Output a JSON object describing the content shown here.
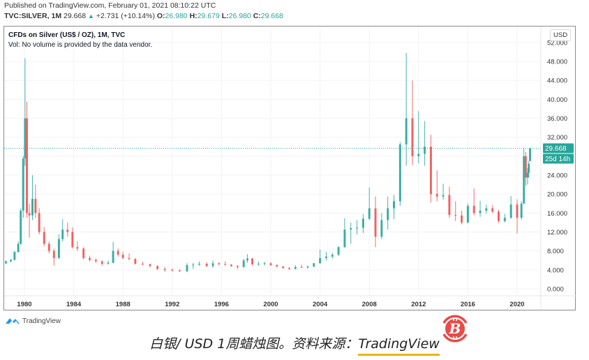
{
  "header": {
    "published": "Published on TradingView.com, February 01, 2021 08:10:22 UTC",
    "symbol": "TVC:SILVER, 1M",
    "last": "29.668",
    "change_icon": "triangle-up-icon",
    "change": "+2.731 (+10.14%)",
    "open_label": "O:",
    "open": "26.980",
    "high_label": "H:",
    "high": "29.679",
    "low_label": "L:",
    "low": "26.980",
    "close_label": "C:",
    "close": "29.668"
  },
  "legend": {
    "title": "CFDs on Silver (US$ / OZ), 1M, TVC",
    "volume_note": "Vol: No volume is provided by the data vendor."
  },
  "price_axis": {
    "currency": "USD",
    "last_price_label": "29.668",
    "countdown_label": "25d 14h"
  },
  "footer": {
    "brand": "TradingView",
    "caption_main": "白银/ USD 1周蜡烛图。资料来源：",
    "caption_source": "TradingView",
    "watermark_icon": "bitcoin-icon"
  },
  "colors": {
    "up": "#26a69a",
    "down": "#ef5350",
    "grid": "#f0f3fa",
    "last_price": "#26a69a",
    "underline": "#f0b400",
    "watermark": "#e94b47"
  },
  "chart_data": {
    "type": "candlestick",
    "title": "CFDs on Silver (US$ / OZ), 1M, TVC",
    "xlabel": "",
    "ylabel": "USD",
    "x_ticks": [
      "1980",
      "1984",
      "1988",
      "1992",
      "1996",
      "2000",
      "2004",
      "2008",
      "2012",
      "2016",
      "2020"
    ],
    "y_ticks": [
      0,
      4,
      8,
      12,
      16,
      20,
      24,
      28,
      32,
      36,
      40,
      44,
      48,
      52
    ],
    "y_tick_labels": [
      "0.000",
      "4.000",
      "8.000",
      "12.000",
      "16.000",
      "20.000",
      "24.000",
      "28.000",
      "32.000",
      "36.000",
      "40.000",
      "44.000",
      "48.000",
      "52.000"
    ],
    "ylim": [
      -1,
      53
    ],
    "xlim": [
      1978.3,
      2022.0
    ],
    "grid": true,
    "last_price": 29.668,
    "series": [
      {
        "name": "SILVER",
        "candles": [
          {
            "t": 1978.5,
            "o": 5.4,
            "h": 6.0,
            "l": 5.2,
            "c": 5.8
          },
          {
            "t": 1978.9,
            "o": 5.8,
            "h": 6.3,
            "l": 5.6,
            "c": 6.1
          },
          {
            "t": 1979.2,
            "o": 6.1,
            "h": 8.0,
            "l": 6.0,
            "c": 7.8
          },
          {
            "t": 1979.5,
            "o": 7.8,
            "h": 10.0,
            "l": 7.6,
            "c": 9.5
          },
          {
            "t": 1979.7,
            "o": 9.5,
            "h": 17.0,
            "l": 9.3,
            "c": 16.5
          },
          {
            "t": 1979.9,
            "o": 16.5,
            "h": 28.0,
            "l": 15.0,
            "c": 27.5
          },
          {
            "t": 1980.05,
            "o": 27.5,
            "h": 48.7,
            "l": 26.0,
            "c": 36.0
          },
          {
            "t": 1980.2,
            "o": 36.0,
            "h": 39.5,
            "l": 15.0,
            "c": 16.0
          },
          {
            "t": 1980.4,
            "o": 16.0,
            "h": 18.0,
            "l": 10.8,
            "c": 15.5
          },
          {
            "t": 1980.65,
            "o": 15.5,
            "h": 24.0,
            "l": 14.5,
            "c": 19.0
          },
          {
            "t": 1980.9,
            "o": 19.0,
            "h": 22.0,
            "l": 15.0,
            "c": 16.0
          },
          {
            "t": 1981.2,
            "o": 16.0,
            "h": 17.0,
            "l": 11.5,
            "c": 12.0
          },
          {
            "t": 1981.6,
            "o": 12.0,
            "h": 13.0,
            "l": 9.0,
            "c": 9.5
          },
          {
            "t": 1982.0,
            "o": 9.5,
            "h": 10.0,
            "l": 7.5,
            "c": 8.0
          },
          {
            "t": 1982.4,
            "o": 8.0,
            "h": 8.5,
            "l": 4.9,
            "c": 6.5
          },
          {
            "t": 1982.8,
            "o": 6.5,
            "h": 11.5,
            "l": 6.3,
            "c": 10.5
          },
          {
            "t": 1983.1,
            "o": 10.5,
            "h": 14.7,
            "l": 10.0,
            "c": 12.5
          },
          {
            "t": 1983.5,
            "o": 12.5,
            "h": 14.0,
            "l": 11.0,
            "c": 12.0
          },
          {
            "t": 1983.9,
            "o": 12.0,
            "h": 13.0,
            "l": 8.5,
            "c": 8.8
          },
          {
            "t": 1984.3,
            "o": 8.8,
            "h": 10.0,
            "l": 8.0,
            "c": 8.5
          },
          {
            "t": 1984.8,
            "o": 8.5,
            "h": 8.8,
            "l": 6.2,
            "c": 6.5
          },
          {
            "t": 1985.3,
            "o": 6.5,
            "h": 7.0,
            "l": 5.8,
            "c": 6.1
          },
          {
            "t": 1985.8,
            "o": 6.1,
            "h": 6.4,
            "l": 5.5,
            "c": 5.8
          },
          {
            "t": 1986.3,
            "o": 5.8,
            "h": 6.0,
            "l": 4.9,
            "c": 5.3
          },
          {
            "t": 1986.8,
            "o": 5.3,
            "h": 6.0,
            "l": 5.1,
            "c": 5.5
          },
          {
            "t": 1987.2,
            "o": 5.5,
            "h": 9.9,
            "l": 5.4,
            "c": 8.0
          },
          {
            "t": 1987.6,
            "o": 8.0,
            "h": 8.5,
            "l": 6.8,
            "c": 7.2
          },
          {
            "t": 1988.0,
            "o": 7.2,
            "h": 7.8,
            "l": 6.3,
            "c": 6.5
          },
          {
            "t": 1988.5,
            "o": 6.5,
            "h": 7.5,
            "l": 6.0,
            "c": 6.3
          },
          {
            "t": 1989.0,
            "o": 6.3,
            "h": 6.5,
            "l": 5.1,
            "c": 5.3
          },
          {
            "t": 1989.6,
            "o": 5.3,
            "h": 5.7,
            "l": 5.0,
            "c": 5.2
          },
          {
            "t": 1990.2,
            "o": 5.2,
            "h": 5.3,
            "l": 4.6,
            "c": 4.8
          },
          {
            "t": 1990.8,
            "o": 4.8,
            "h": 5.0,
            "l": 4.0,
            "c": 4.2
          },
          {
            "t": 1991.4,
            "o": 4.2,
            "h": 4.6,
            "l": 3.6,
            "c": 4.0
          },
          {
            "t": 1992.0,
            "o": 4.0,
            "h": 4.3,
            "l": 3.7,
            "c": 3.9
          },
          {
            "t": 1992.6,
            "o": 3.9,
            "h": 4.1,
            "l": 3.6,
            "c": 3.7
          },
          {
            "t": 1993.2,
            "o": 3.7,
            "h": 5.4,
            "l": 3.5,
            "c": 5.0
          },
          {
            "t": 1993.7,
            "o": 5.0,
            "h": 5.5,
            "l": 4.2,
            "c": 5.1
          },
          {
            "t": 1994.2,
            "o": 5.1,
            "h": 5.8,
            "l": 4.9,
            "c": 5.3
          },
          {
            "t": 1994.8,
            "o": 5.3,
            "h": 5.6,
            "l": 4.6,
            "c": 4.8
          },
          {
            "t": 1995.3,
            "o": 4.8,
            "h": 6.0,
            "l": 4.4,
            "c": 5.4
          },
          {
            "t": 1995.8,
            "o": 5.4,
            "h": 5.6,
            "l": 5.0,
            "c": 5.2
          },
          {
            "t": 1996.3,
            "o": 5.2,
            "h": 5.8,
            "l": 4.9,
            "c": 5.1
          },
          {
            "t": 1996.8,
            "o": 5.1,
            "h": 5.2,
            "l": 4.7,
            "c": 4.8
          },
          {
            "t": 1997.3,
            "o": 4.8,
            "h": 5.0,
            "l": 4.2,
            "c": 4.6
          },
          {
            "t": 1997.8,
            "o": 4.6,
            "h": 6.3,
            "l": 4.5,
            "c": 6.0
          },
          {
            "t": 1998.1,
            "o": 6.0,
            "h": 7.3,
            "l": 5.5,
            "c": 6.4
          },
          {
            "t": 1998.5,
            "o": 6.4,
            "h": 6.5,
            "l": 4.9,
            "c": 5.2
          },
          {
            "t": 1999.0,
            "o": 5.2,
            "h": 5.8,
            "l": 4.9,
            "c": 5.3
          },
          {
            "t": 1999.5,
            "o": 5.3,
            "h": 5.7,
            "l": 4.9,
            "c": 5.4
          },
          {
            "t": 2000.0,
            "o": 5.4,
            "h": 5.6,
            "l": 4.9,
            "c": 5.0
          },
          {
            "t": 2000.5,
            "o": 5.0,
            "h": 5.2,
            "l": 4.6,
            "c": 4.7
          },
          {
            "t": 2001.0,
            "o": 4.7,
            "h": 4.8,
            "l": 4.2,
            "c": 4.4
          },
          {
            "t": 2001.5,
            "o": 4.4,
            "h": 4.6,
            "l": 4.0,
            "c": 4.2
          },
          {
            "t": 2002.0,
            "o": 4.2,
            "h": 5.0,
            "l": 4.1,
            "c": 4.6
          },
          {
            "t": 2002.5,
            "o": 4.6,
            "h": 5.1,
            "l": 4.4,
            "c": 4.5
          },
          {
            "t": 2003.0,
            "o": 4.5,
            "h": 4.9,
            "l": 4.3,
            "c": 4.7
          },
          {
            "t": 2003.5,
            "o": 4.7,
            "h": 5.5,
            "l": 4.6,
            "c": 5.4
          },
          {
            "t": 2004.0,
            "o": 5.4,
            "h": 8.3,
            "l": 5.3,
            "c": 6.5
          },
          {
            "t": 2004.5,
            "o": 6.5,
            "h": 7.8,
            "l": 6.0,
            "c": 6.8
          },
          {
            "t": 2005.0,
            "o": 6.8,
            "h": 7.6,
            "l": 6.4,
            "c": 7.2
          },
          {
            "t": 2005.5,
            "o": 7.2,
            "h": 9.0,
            "l": 6.9,
            "c": 8.8
          },
          {
            "t": 2006.0,
            "o": 8.8,
            "h": 14.9,
            "l": 8.7,
            "c": 12.5
          },
          {
            "t": 2006.5,
            "o": 12.5,
            "h": 14.0,
            "l": 9.5,
            "c": 12.8
          },
          {
            "t": 2007.0,
            "o": 12.8,
            "h": 14.5,
            "l": 11.5,
            "c": 12.9
          },
          {
            "t": 2007.5,
            "o": 12.9,
            "h": 15.8,
            "l": 11.8,
            "c": 14.8
          },
          {
            "t": 2008.0,
            "o": 14.8,
            "h": 21.4,
            "l": 14.5,
            "c": 17.0
          },
          {
            "t": 2008.5,
            "o": 17.0,
            "h": 19.5,
            "l": 8.8,
            "c": 11.0
          },
          {
            "t": 2009.0,
            "o": 11.0,
            "h": 16.0,
            "l": 10.5,
            "c": 14.5
          },
          {
            "t": 2009.5,
            "o": 14.5,
            "h": 19.5,
            "l": 12.5,
            "c": 17.0
          },
          {
            "t": 2010.0,
            "o": 17.0,
            "h": 19.8,
            "l": 14.7,
            "c": 18.5
          },
          {
            "t": 2010.5,
            "o": 18.5,
            "h": 31.0,
            "l": 17.5,
            "c": 30.5
          },
          {
            "t": 2011.0,
            "o": 30.5,
            "h": 49.8,
            "l": 26.0,
            "c": 36.0
          },
          {
            "t": 2011.5,
            "o": 36.0,
            "h": 44.0,
            "l": 26.1,
            "c": 28.0
          },
          {
            "t": 2012.0,
            "o": 28.0,
            "h": 37.5,
            "l": 26.5,
            "c": 28.5
          },
          {
            "t": 2012.5,
            "o": 28.5,
            "h": 35.4,
            "l": 26.0,
            "c": 30.0
          },
          {
            "t": 2013.0,
            "o": 30.0,
            "h": 32.5,
            "l": 18.2,
            "c": 20.0
          },
          {
            "t": 2013.5,
            "o": 20.0,
            "h": 25.0,
            "l": 18.5,
            "c": 19.5
          },
          {
            "t": 2014.0,
            "o": 19.5,
            "h": 22.2,
            "l": 18.8,
            "c": 19.8
          },
          {
            "t": 2014.5,
            "o": 19.8,
            "h": 21.6,
            "l": 15.0,
            "c": 15.6
          },
          {
            "t": 2015.0,
            "o": 15.6,
            "h": 18.5,
            "l": 14.3,
            "c": 15.5
          },
          {
            "t": 2015.5,
            "o": 15.5,
            "h": 16.5,
            "l": 13.6,
            "c": 14.0
          },
          {
            "t": 2016.0,
            "o": 14.0,
            "h": 18.0,
            "l": 13.8,
            "c": 17.5
          },
          {
            "t": 2016.5,
            "o": 17.5,
            "h": 21.2,
            "l": 15.5,
            "c": 16.0
          },
          {
            "t": 2017.0,
            "o": 16.0,
            "h": 18.6,
            "l": 15.2,
            "c": 16.5
          },
          {
            "t": 2017.5,
            "o": 16.5,
            "h": 17.8,
            "l": 15.9,
            "c": 17.0
          },
          {
            "t": 2018.0,
            "o": 17.0,
            "h": 17.7,
            "l": 16.0,
            "c": 16.3
          },
          {
            "t": 2018.5,
            "o": 16.3,
            "h": 16.7,
            "l": 13.9,
            "c": 14.3
          },
          {
            "t": 2019.0,
            "o": 14.3,
            "h": 15.8,
            "l": 14.0,
            "c": 15.0
          },
          {
            "t": 2019.5,
            "o": 15.0,
            "h": 19.6,
            "l": 14.8,
            "c": 17.8
          },
          {
            "t": 2020.0,
            "o": 17.8,
            "h": 18.9,
            "l": 11.7,
            "c": 15.0
          },
          {
            "t": 2020.35,
            "o": 15.0,
            "h": 18.5,
            "l": 14.6,
            "c": 18.0
          },
          {
            "t": 2020.55,
            "o": 18.0,
            "h": 29.8,
            "l": 17.9,
            "c": 28.0
          },
          {
            "t": 2020.7,
            "o": 28.0,
            "h": 28.9,
            "l": 21.7,
            "c": 23.5
          },
          {
            "t": 2020.85,
            "o": 23.5,
            "h": 25.5,
            "l": 22.0,
            "c": 24.5
          },
          {
            "t": 2020.95,
            "o": 24.5,
            "h": 27.0,
            "l": 23.5,
            "c": 26.4
          },
          {
            "t": 2021.05,
            "o": 26.98,
            "h": 29.679,
            "l": 26.98,
            "c": 29.668
          }
        ]
      }
    ]
  }
}
